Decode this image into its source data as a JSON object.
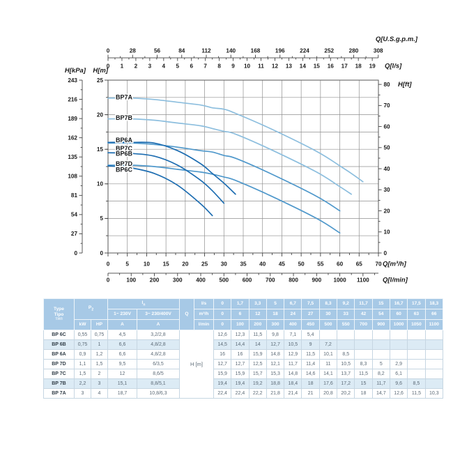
{
  "page": {
    "background": "#ffffff"
  },
  "chart": {
    "colors": {
      "grid": "#8f8f8f",
      "frame": "#666666",
      "text": "#1a1a1a"
    },
    "axes": {
      "top_gpm": {
        "label": "Q[U.S.g.p.m.]",
        "ticks": [
          0,
          28,
          56,
          84,
          112,
          140,
          168,
          196,
          224,
          252,
          280,
          308
        ]
      },
      "top_ls": {
        "label": "Q[l/s]",
        "ticks": [
          0,
          1,
          2,
          3,
          4,
          5,
          6,
          7,
          8,
          9,
          10,
          11,
          12,
          13,
          14,
          15,
          16,
          17,
          18,
          19
        ]
      },
      "left_kpa": {
        "label": "H[kPa]",
        "ticks": [
          243,
          216,
          189,
          162,
          135,
          108,
          81,
          54,
          27,
          0
        ]
      },
      "left_m": {
        "label": "H[m]",
        "ticks": [
          25,
          20,
          15,
          10,
          5,
          0
        ]
      },
      "right_ft": {
        "label": "H[ft]",
        "ticks": [
          80,
          70,
          60,
          50,
          40,
          30,
          20,
          10,
          0
        ]
      },
      "bottom_m3h": {
        "label": "Q[m³/h]",
        "ticks": [
          0,
          5,
          10,
          15,
          20,
          25,
          30,
          35,
          40,
          45,
          50,
          55,
          60,
          65,
          70
        ]
      },
      "bottom_lmin": {
        "label": "Q[l/min]",
        "ticks": [
          0,
          100,
          200,
          300,
          400,
          500,
          600,
          700,
          800,
          900,
          1000,
          1100
        ]
      }
    }
  },
  "chart_data": {
    "type": "line",
    "title": "",
    "xlabel": "Q[m³/h]",
    "ylabel": "H[m]",
    "xlim": [
      0,
      70
    ],
    "ylim": [
      0,
      25
    ],
    "grid": true,
    "legend_position": "on-curve-left",
    "series": [
      {
        "name": "BP7A",
        "color": "#8cbede",
        "label_y": 22.55,
        "x": [
          0,
          6,
          12,
          18,
          24,
          27,
          30,
          33,
          42,
          54,
          60,
          63,
          66
        ],
        "y": [
          22.4,
          22.4,
          22.2,
          21.8,
          21.4,
          21,
          20.8,
          20.2,
          18,
          14.7,
          12.6,
          11.5,
          10.3
        ]
      },
      {
        "name": "BP7B",
        "color": "#8cbede",
        "label_y": 19.55,
        "x": [
          0,
          6,
          12,
          18,
          24,
          27,
          30,
          33,
          42,
          54,
          60,
          63
        ],
        "y": [
          19.4,
          19.4,
          19.2,
          18.8,
          18.4,
          18,
          17.6,
          17.2,
          15,
          11.7,
          9.6,
          8.5
        ]
      },
      {
        "name": "BP7C",
        "color": "#4f98cb",
        "label_y": 15.1,
        "x": [
          0,
          6,
          12,
          18,
          24,
          27,
          30,
          33,
          42,
          54,
          60
        ],
        "y": [
          15.9,
          15.9,
          15.7,
          15.3,
          14.8,
          14.6,
          14.1,
          13.7,
          11.5,
          8.2,
          6.1
        ]
      },
      {
        "name": "BP7D",
        "color": "#4f98cb",
        "label_y": 12.9,
        "x": [
          0,
          6,
          12,
          18,
          24,
          27,
          30,
          33,
          42,
          54,
          60
        ],
        "y": [
          12.7,
          12.7,
          12.5,
          12.1,
          11.7,
          11.4,
          11,
          10.5,
          8.3,
          5,
          2.9
        ]
      },
      {
        "name": "BP6A",
        "color": "#1d6db1",
        "label_y": 16.35,
        "x": [
          0,
          6,
          12,
          18,
          24,
          27,
          30,
          33
        ],
        "y": [
          16,
          16,
          15.9,
          14.8,
          12.9,
          11.5,
          10.1,
          8.5
        ]
      },
      {
        "name": "BP6B",
        "color": "#1d6db1",
        "label_y": 14.35,
        "x": [
          0,
          6,
          12,
          18,
          24,
          27,
          30
        ],
        "y": [
          14.5,
          14.4,
          14,
          12.7,
          10.5,
          9,
          7.2
        ]
      },
      {
        "name": "BP6C",
        "color": "#1d6db1",
        "label_y": 12.05,
        "x": [
          0,
          6,
          12,
          18,
          24,
          27
        ],
        "y": [
          12.6,
          12.3,
          11.5,
          9.8,
          7.1,
          5.4
        ]
      }
    ]
  },
  "table": {
    "colors": {
      "header_bg": "#a7c9e6",
      "tint": "#dcebf5",
      "border": "#c6d6e2",
      "header_border": "#eef5fa",
      "text": "#5d6b77",
      "type_text": "#333f49"
    },
    "header": {
      "type_lines": [
        "Type",
        "Tipo",
        "Тип"
      ],
      "p_label": "P",
      "p_sub": "2",
      "p_units": [
        "kW",
        "HP"
      ],
      "i_label": "I",
      "i_sub": "n",
      "voltage_cols": [
        "1~ 230V",
        "3~ 230/400V"
      ],
      "amp_units": [
        "A",
        "A"
      ],
      "q_label": "Q",
      "flow_unit_ls": "l/s",
      "flow_unit_m3h": "m³/h",
      "flow_unit_lmin": "l/min",
      "flow_ls": [
        "0",
        "1,7",
        "3,3",
        "5",
        "6,7",
        "7,5",
        "8,3",
        "9,2",
        "11,7",
        "15",
        "16,7",
        "17,5",
        "18,3"
      ],
      "flow_m3h": [
        "0",
        "6",
        "12",
        "18",
        "24",
        "27",
        "30",
        "33",
        "42",
        "54",
        "60",
        "63",
        "66"
      ],
      "flow_lmin": [
        "0",
        "100",
        "200",
        "300",
        "400",
        "450",
        "500",
        "550",
        "700",
        "900",
        "1000",
        "1050",
        "1100"
      ]
    },
    "h_label": "H [m]",
    "rows": [
      {
        "type": "BP 6C",
        "kw": "0,55",
        "hp": "0,75",
        "a230": "4,5",
        "a400": "3,2/2,8",
        "tinted": false,
        "h": [
          "12,6",
          "12,3",
          "11,5",
          "9,8",
          "7,1",
          "5,4",
          "",
          "",
          "",
          "",
          "",
          "",
          ""
        ]
      },
      {
        "type": "BP 6B",
        "kw": "0,75",
        "hp": "1",
        "a230": "6,6",
        "a400": "4,8/2,8",
        "tinted": true,
        "h": [
          "14,5",
          "14,4",
          "14",
          "12,7",
          "10,5",
          "9",
          "7,2",
          "",
          "",
          "",
          "",
          "",
          ""
        ]
      },
      {
        "type": "BP 6A",
        "kw": "0,9",
        "hp": "1,2",
        "a230": "6,6",
        "a400": "4,8/2,8",
        "tinted": false,
        "h": [
          "16",
          "16",
          "15,9",
          "14,8",
          "12,9",
          "11,5",
          "10,1",
          "8,5",
          "",
          "",
          "",
          "",
          ""
        ]
      },
      {
        "type": "BP 7D",
        "kw": "1,1",
        "hp": "1,5",
        "a230": "9,5",
        "a400": "6/3,5",
        "tinted": false,
        "h": [
          "12,7",
          "12,7",
          "12,5",
          "12,1",
          "11,7",
          "11,4",
          "11",
          "10,5",
          "8,3",
          "5",
          "2,9",
          "",
          ""
        ]
      },
      {
        "type": "BP 7C",
        "kw": "1,5",
        "hp": "2",
        "a230": "12",
        "a400": "8,6/5",
        "tinted": false,
        "h": [
          "15,9",
          "15,9",
          "15,7",
          "15,3",
          "14,8",
          "14,6",
          "14,1",
          "13,7",
          "11,5",
          "8,2",
          "6,1",
          "",
          ""
        ]
      },
      {
        "type": "BP 7B",
        "kw": "2,2",
        "hp": "3",
        "a230": "15,1",
        "a400": "8,8/5,1",
        "tinted": true,
        "h": [
          "19,4",
          "19,4",
          "19,2",
          "18,8",
          "18,4",
          "18",
          "17,6",
          "17,2",
          "15",
          "11,7",
          "9,6",
          "8,5",
          ""
        ]
      },
      {
        "type": "BP 7A",
        "kw": "3",
        "hp": "4",
        "a230": "18,7",
        "a400": "10,8/6,3",
        "tinted": false,
        "h": [
          "22,4",
          "22,4",
          "22,2",
          "21,8",
          "21,4",
          "21",
          "20,8",
          "20,2",
          "18",
          "14,7",
          "12,6",
          "11,5",
          "10,3"
        ]
      }
    ]
  }
}
